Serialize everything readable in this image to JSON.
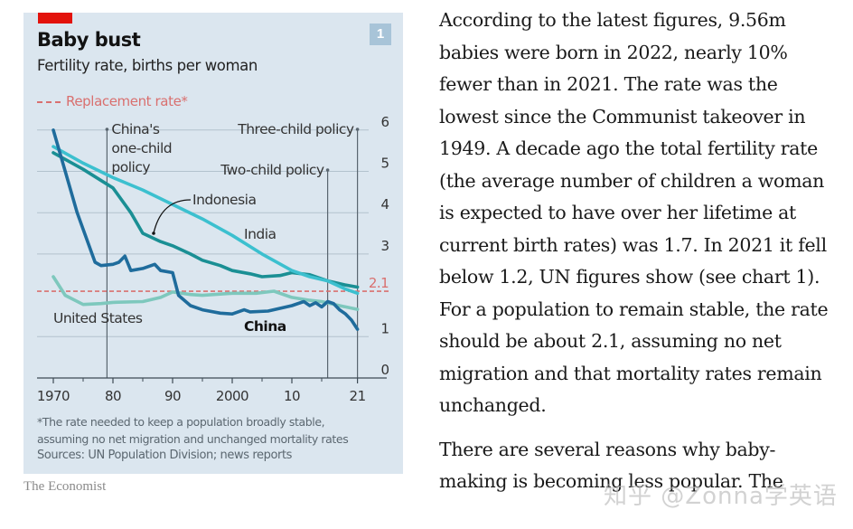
{
  "chart_card": {
    "title": "Baby bust",
    "subtitle": "Fertility rate, births per woman",
    "chart_number": "1",
    "legend_replacement": "Replacement rate*",
    "footnote_line1": "*The rate needed to keep a population broadly stable,",
    "footnote_line2": "assuming no net migration and unchanged mortality rates",
    "sources": "Sources: UN Population Division; news reports",
    "brand": "The Economist"
  },
  "chart_data": {
    "type": "line",
    "title": "Baby bust",
    "subtitle": "Fertility rate, births per woman",
    "xlabel": "",
    "ylabel": "",
    "xlim": [
      1970,
      2021
    ],
    "ylim": [
      0,
      6
    ],
    "x_ticks": [
      {
        "value": 1970,
        "label": "1970"
      },
      {
        "value": 1980,
        "label": "80"
      },
      {
        "value": 1990,
        "label": "90"
      },
      {
        "value": 2000,
        "label": "2000"
      },
      {
        "value": 2010,
        "label": "10"
      },
      {
        "value": 2021,
        "label": "21"
      }
    ],
    "x_minor_ticks": [
      1975,
      1985,
      1995,
      2005,
      2015
    ],
    "y_ticks": [
      0,
      1,
      3,
      4,
      5,
      6
    ],
    "grid": true,
    "reference_line": {
      "label": "2.1",
      "value": 2.1,
      "legend": "Replacement rate*",
      "color": "#d9706f"
    },
    "series": [
      {
        "name": "United States",
        "color": "#7ec8bd",
        "points": [
          [
            1970,
            2.45
          ],
          [
            1972,
            2.0
          ],
          [
            1975,
            1.78
          ],
          [
            1978,
            1.8
          ],
          [
            1980,
            1.83
          ],
          [
            1985,
            1.85
          ],
          [
            1988,
            1.95
          ],
          [
            1990,
            2.08
          ],
          [
            1993,
            2.02
          ],
          [
            1995,
            2.0
          ],
          [
            2000,
            2.05
          ],
          [
            2004,
            2.05
          ],
          [
            2007,
            2.1
          ],
          [
            2010,
            1.95
          ],
          [
            2013,
            1.88
          ],
          [
            2015,
            1.85
          ],
          [
            2018,
            1.75
          ],
          [
            2021,
            1.66
          ]
        ]
      },
      {
        "name": "Indonesia",
        "color": "#1a8f94",
        "points": [
          [
            1970,
            5.45
          ],
          [
            1975,
            5.05
          ],
          [
            1980,
            4.6
          ],
          [
            1983,
            4.0
          ],
          [
            1985,
            3.5
          ],
          [
            1988,
            3.3
          ],
          [
            1990,
            3.2
          ],
          [
            1993,
            3.0
          ],
          [
            1995,
            2.85
          ],
          [
            1998,
            2.72
          ],
          [
            2000,
            2.6
          ],
          [
            2003,
            2.52
          ],
          [
            2005,
            2.45
          ],
          [
            2008,
            2.48
          ],
          [
            2010,
            2.55
          ],
          [
            2013,
            2.5
          ],
          [
            2016,
            2.35
          ],
          [
            2019,
            2.25
          ],
          [
            2021,
            2.2
          ]
        ]
      },
      {
        "name": "India",
        "color": "#3cc0cf",
        "points": [
          [
            1970,
            5.6
          ],
          [
            1975,
            5.2
          ],
          [
            1980,
            4.85
          ],
          [
            1985,
            4.55
          ],
          [
            1990,
            4.2
          ],
          [
            1995,
            3.85
          ],
          [
            2000,
            3.45
          ],
          [
            2005,
            3.0
          ],
          [
            2010,
            2.6
          ],
          [
            2013,
            2.45
          ],
          [
            2016,
            2.35
          ],
          [
            2019,
            2.15
          ],
          [
            2021,
            2.05
          ]
        ]
      },
      {
        "name": "China",
        "color": "#1f6c9c",
        "points": [
          [
            1970,
            6.0
          ],
          [
            1972,
            5.0
          ],
          [
            1974,
            4.0
          ],
          [
            1975,
            3.6
          ],
          [
            1977,
            2.8
          ],
          [
            1978,
            2.72
          ],
          [
            1980,
            2.75
          ],
          [
            1981,
            2.8
          ],
          [
            1982,
            2.95
          ],
          [
            1983,
            2.6
          ],
          [
            1985,
            2.65
          ],
          [
            1987,
            2.75
          ],
          [
            1988,
            2.6
          ],
          [
            1990,
            2.55
          ],
          [
            1991,
            2.0
          ],
          [
            1993,
            1.75
          ],
          [
            1995,
            1.65
          ],
          [
            1998,
            1.57
          ],
          [
            2000,
            1.55
          ],
          [
            2002,
            1.65
          ],
          [
            2003,
            1.6
          ],
          [
            2006,
            1.62
          ],
          [
            2010,
            1.75
          ],
          [
            2012,
            1.85
          ],
          [
            2013,
            1.75
          ],
          [
            2014,
            1.82
          ],
          [
            2015,
            1.72
          ],
          [
            2016,
            1.85
          ],
          [
            2017,
            1.8
          ],
          [
            2018,
            1.65
          ],
          [
            2019,
            1.55
          ],
          [
            2020,
            1.4
          ],
          [
            2021,
            1.18
          ]
        ]
      }
    ],
    "series_labels": [
      {
        "name": "United States",
        "label": "United States",
        "bold": false
      },
      {
        "name": "Indonesia",
        "label": "Indonesia",
        "bold": false
      },
      {
        "name": "India",
        "label": "India",
        "bold": false
      },
      {
        "name": "China",
        "label": "China",
        "bold": true
      }
    ],
    "annotations": [
      {
        "year": 1979,
        "label_lines": [
          "China's",
          "one-child",
          "policy"
        ]
      },
      {
        "year": 2016,
        "label_lines": [
          "Two-child policy"
        ]
      },
      {
        "year": 2021,
        "label_lines": [
          "Three-child policy"
        ]
      }
    ]
  },
  "article": {
    "paragraphs": [
      "According to the latest figures, 9.56m babies were born in 2022, nearly 10% fewer than in 2021. The rate was the lowest since the Communist takeover in 1949. A decade ago the total fertility rate (the average number of children a woman is expected to have over her lifetime at current birth rates) was 1.7. In 2021 it fell below 1.2, UN figures show (see chart 1). For a population to remain stable, the rate should be about 2.1, assuming no net migration and that mortality rates remain unchanged.",
      "There are several reasons why baby-making is becoming less popular. The"
    ]
  },
  "watermark": "知乎 @Zonna学英语"
}
